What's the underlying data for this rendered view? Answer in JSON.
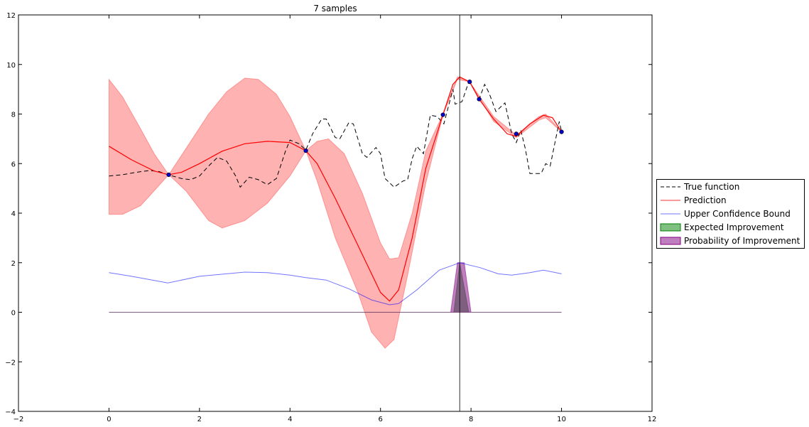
{
  "chart_data": {
    "type": "line",
    "title": "7 samples",
    "xlabel": "",
    "ylabel": "",
    "xlim": [
      -2,
      12
    ],
    "ylim": [
      -4,
      12
    ],
    "xticks": [
      "-2",
      "0",
      "2",
      "4",
      "6",
      "8",
      "10",
      "12"
    ],
    "yticks": [
      "-4",
      "-2",
      "0",
      "2",
      "4",
      "6",
      "8",
      "10",
      "12"
    ],
    "legend_position": "center-right outside",
    "legend": [
      "True function",
      "Prediction",
      "Upper Confidence Bound",
      "Expected Improvement",
      "Probability of Improvement"
    ],
    "next_sample_x": 7.75,
    "samples": [
      [
        1.32,
        5.55
      ],
      [
        4.35,
        6.52
      ],
      [
        7.38,
        7.97
      ],
      [
        7.97,
        9.3
      ],
      [
        8.18,
        8.6
      ],
      [
        9.0,
        7.2
      ],
      [
        10,
        7.28
      ]
    ],
    "true_function": [
      [
        0,
        5.5
      ],
      [
        0.3,
        5.55
      ],
      [
        0.6,
        5.65
      ],
      [
        0.9,
        5.72
      ],
      [
        1.1,
        5.68
      ],
      [
        1.3,
        5.55
      ],
      [
        1.6,
        5.4
      ],
      [
        1.8,
        5.35
      ],
      [
        2.0,
        5.5
      ],
      [
        2.2,
        5.9
      ],
      [
        2.4,
        6.25
      ],
      [
        2.6,
        6.1
      ],
      [
        2.8,
        5.5
      ],
      [
        2.9,
        5.05
      ],
      [
        3.1,
        5.45
      ],
      [
        3.3,
        5.35
      ],
      [
        3.5,
        5.15
      ],
      [
        3.7,
        5.4
      ],
      [
        3.9,
        6.5
      ],
      [
        4.0,
        6.95
      ],
      [
        4.2,
        6.8
      ],
      [
        4.35,
        6.55
      ],
      [
        4.5,
        7.2
      ],
      [
        4.7,
        7.8
      ],
      [
        4.8,
        7.8
      ],
      [
        5.0,
        7.05
      ],
      [
        5.1,
        7.0
      ],
      [
        5.3,
        7.65
      ],
      [
        5.4,
        7.6
      ],
      [
        5.6,
        6.4
      ],
      [
        5.7,
        6.25
      ],
      [
        5.9,
        6.65
      ],
      [
        6.0,
        6.4
      ],
      [
        6.1,
        5.4
      ],
      [
        6.3,
        5.05
      ],
      [
        6.5,
        5.3
      ],
      [
        6.6,
        5.35
      ],
      [
        6.7,
        6.2
      ],
      [
        6.8,
        6.7
      ],
      [
        6.95,
        6.4
      ],
      [
        7.1,
        7.95
      ],
      [
        7.25,
        7.9
      ],
      [
        7.4,
        7.6
      ],
      [
        7.5,
        8.3
      ],
      [
        7.6,
        9.0
      ],
      [
        7.65,
        8.4
      ],
      [
        7.8,
        8.5
      ],
      [
        7.95,
        9.3
      ],
      [
        8.05,
        9.05
      ],
      [
        8.18,
        8.6
      ],
      [
        8.3,
        9.2
      ],
      [
        8.4,
        8.85
      ],
      [
        8.55,
        8.1
      ],
      [
        8.75,
        8.45
      ],
      [
        8.9,
        7.2
      ],
      [
        9.0,
        6.85
      ],
      [
        9.1,
        7.35
      ],
      [
        9.2,
        6.6
      ],
      [
        9.3,
        5.6
      ],
      [
        9.55,
        5.6
      ],
      [
        9.65,
        6.0
      ],
      [
        9.75,
        5.9
      ],
      [
        9.95,
        7.7
      ],
      [
        10,
        7.3
      ]
    ],
    "prediction": [
      [
        0,
        6.7
      ],
      [
        0.5,
        6.15
      ],
      [
        1.0,
        5.7
      ],
      [
        1.32,
        5.55
      ],
      [
        1.6,
        5.65
      ],
      [
        2.0,
        6.0
      ],
      [
        2.5,
        6.5
      ],
      [
        3.0,
        6.8
      ],
      [
        3.5,
        6.9
      ],
      [
        4.0,
        6.85
      ],
      [
        4.35,
        6.52
      ],
      [
        4.6,
        6.0
      ],
      [
        5.0,
        4.6
      ],
      [
        5.5,
        2.7
      ],
      [
        6.0,
        0.8
      ],
      [
        6.2,
        0.45
      ],
      [
        6.4,
        0.9
      ],
      [
        6.7,
        3.0
      ],
      [
        7.0,
        5.8
      ],
      [
        7.38,
        7.97
      ],
      [
        7.6,
        9.2
      ],
      [
        7.75,
        9.5
      ],
      [
        7.97,
        9.3
      ],
      [
        8.18,
        8.6
      ],
      [
        8.5,
        7.8
      ],
      [
        8.8,
        7.2
      ],
      [
        9.0,
        7.1
      ],
      [
        9.3,
        7.6
      ],
      [
        9.6,
        7.95
      ],
      [
        9.8,
        7.85
      ],
      [
        10,
        7.28
      ]
    ],
    "confidence_upper": [
      [
        0,
        9.4
      ],
      [
        0.3,
        8.7
      ],
      [
        0.7,
        7.4
      ],
      [
        1.0,
        6.4
      ],
      [
        1.32,
        5.55
      ],
      [
        1.7,
        6.6
      ],
      [
        2.2,
        8.0
      ],
      [
        2.6,
        8.9
      ],
      [
        3.0,
        9.45
      ],
      [
        3.3,
        9.4
      ],
      [
        3.7,
        8.8
      ],
      [
        4.0,
        7.9
      ],
      [
        4.35,
        6.52
      ],
      [
        4.6,
        6.9
      ],
      [
        4.85,
        7.0
      ],
      [
        5.2,
        6.4
      ],
      [
        5.6,
        4.8
      ],
      [
        6.0,
        2.8
      ],
      [
        6.2,
        2.15
      ],
      [
        6.4,
        2.2
      ],
      [
        6.7,
        4.0
      ],
      [
        7.0,
        6.5
      ],
      [
        7.38,
        8.0
      ],
      [
        7.7,
        9.5
      ],
      [
        7.97,
        9.3
      ],
      [
        8.5,
        7.9
      ],
      [
        9.0,
        7.15
      ],
      [
        9.5,
        7.9
      ],
      [
        9.65,
        8.0
      ],
      [
        10,
        7.28
      ]
    ],
    "confidence_lower": [
      [
        0,
        3.95
      ],
      [
        0.3,
        3.95
      ],
      [
        0.7,
        4.3
      ],
      [
        1.0,
        4.9
      ],
      [
        1.32,
        5.55
      ],
      [
        1.7,
        4.9
      ],
      [
        2.2,
        3.7
      ],
      [
        2.5,
        3.4
      ],
      [
        3.0,
        3.7
      ],
      [
        3.5,
        4.4
      ],
      [
        4.0,
        5.5
      ],
      [
        4.35,
        6.52
      ],
      [
        4.6,
        5.3
      ],
      [
        5.0,
        3.0
      ],
      [
        5.5,
        0.8
      ],
      [
        5.8,
        -0.8
      ],
      [
        6.1,
        -1.45
      ],
      [
        6.3,
        -1.1
      ],
      [
        6.6,
        1.5
      ],
      [
        7.0,
        5.2
      ],
      [
        7.38,
        7.95
      ],
      [
        7.7,
        9.4
      ],
      [
        7.97,
        9.3
      ],
      [
        8.5,
        7.7
      ],
      [
        9.0,
        7.05
      ],
      [
        9.5,
        7.75
      ],
      [
        9.65,
        7.85
      ],
      [
        10,
        7.28
      ]
    ],
    "ucb": [
      [
        0,
        1.6
      ],
      [
        0.5,
        1.45
      ],
      [
        1.3,
        1.18
      ],
      [
        2.0,
        1.45
      ],
      [
        3.0,
        1.62
      ],
      [
        3.5,
        1.6
      ],
      [
        4.0,
        1.5
      ],
      [
        4.35,
        1.4
      ],
      [
        4.8,
        1.3
      ],
      [
        5.3,
        0.95
      ],
      [
        5.8,
        0.5
      ],
      [
        6.2,
        0.3
      ],
      [
        6.4,
        0.35
      ],
      [
        6.8,
        0.9
      ],
      [
        7.3,
        1.7
      ],
      [
        7.75,
        2.0
      ],
      [
        8.2,
        1.8
      ],
      [
        8.6,
        1.55
      ],
      [
        8.9,
        1.5
      ],
      [
        9.3,
        1.6
      ],
      [
        9.6,
        1.7
      ],
      [
        10,
        1.55
      ]
    ],
    "expected_improvement": [
      [
        0,
        0
      ],
      [
        7.62,
        0
      ],
      [
        7.75,
        2.0
      ],
      [
        7.95,
        0
      ],
      [
        10,
        0
      ]
    ],
    "probability_of_improvement": [
      [
        0,
        0
      ],
      [
        7.55,
        0
      ],
      [
        7.7,
        2.0
      ],
      [
        7.85,
        2.0
      ],
      [
        8.0,
        0
      ],
      [
        10,
        0
      ]
    ],
    "colors": {
      "true": "#000000",
      "prediction": "#ff0000",
      "band": "#ff0000",
      "ucb": "#0000ff",
      "ei": "#008000",
      "pi": "#800080",
      "sample": "#0000cc"
    }
  }
}
